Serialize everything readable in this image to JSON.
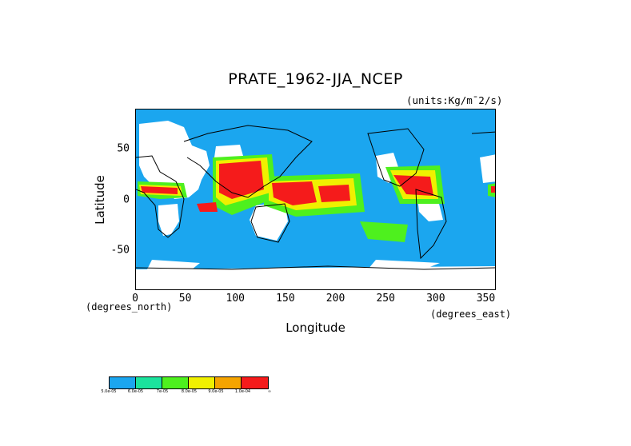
{
  "map": {
    "title": "PRATE_1962-JJA_NCEP",
    "units": "(units:Kg/m¯2/s)",
    "x_axis": {
      "label": "Longitude",
      "unit_left": "(degrees_north)",
      "unit_right": "(degrees_east)",
      "ticks": [
        "0",
        "50",
        "100",
        "150",
        "200",
        "250",
        "300",
        "350"
      ],
      "tick_values": [
        0,
        50,
        100,
        150,
        200,
        250,
        300,
        350
      ],
      "range": [
        0,
        360
      ]
    },
    "y_axis": {
      "label": "Latitude",
      "ticks": [
        "50",
        "0",
        "-50"
      ],
      "tick_values": [
        50,
        0,
        -50
      ],
      "range": [
        -90,
        90
      ]
    },
    "legend": {
      "colors": [
        "#1ba6ef",
        "#1be39d",
        "#4ef01e",
        "#f0f000",
        "#f5a400",
        "#f51b1b"
      ],
      "labels": [
        "5.0e-05",
        "6.0e-05",
        "7e-05",
        "8.0e-05",
        "9.0e-05",
        "1.0e-04",
        "∞"
      ]
    },
    "missing_color": "#ffffff",
    "base_color": "#1ba6ef"
  }
}
